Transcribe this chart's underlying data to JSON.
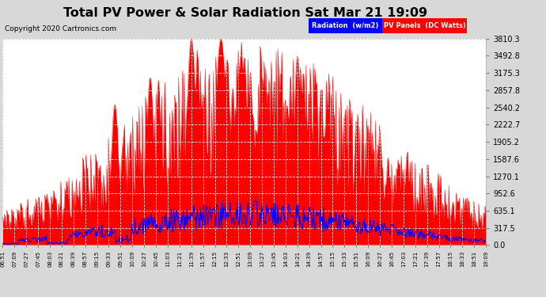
{
  "title": "Total PV Power & Solar Radiation Sat Mar 21 19:09",
  "copyright": "Copyright 2020 Cartronics.com",
  "legend_radiation": "Radiation  (w/m2)",
  "legend_pv": "PV Panels  (DC Watts)",
  "ymax": 3810.3,
  "yticks": [
    0.0,
    317.5,
    635.1,
    952.6,
    1270.1,
    1587.6,
    1905.2,
    2222.7,
    2540.2,
    2857.8,
    3175.3,
    3492.8,
    3810.3
  ],
  "red_color": "#FF0000",
  "blue_color": "#0000FF",
  "outer_bg": "#d8d8d8",
  "plot_bg": "#ffffff",
  "x_labels": [
    "06:51",
    "07:09",
    "07:27",
    "07:45",
    "08:03",
    "08:21",
    "08:39",
    "08:57",
    "09:15",
    "09:33",
    "09:51",
    "10:09",
    "10:27",
    "10:45",
    "11:03",
    "11:21",
    "11:39",
    "11:57",
    "12:15",
    "12:33",
    "12:51",
    "13:09",
    "13:27",
    "13:45",
    "14:03",
    "14:21",
    "14:39",
    "14:57",
    "15:15",
    "15:33",
    "15:51",
    "16:09",
    "16:27",
    "16:45",
    "17:03",
    "17:21",
    "17:39",
    "17:57",
    "18:15",
    "18:33",
    "18:51",
    "19:09"
  ]
}
